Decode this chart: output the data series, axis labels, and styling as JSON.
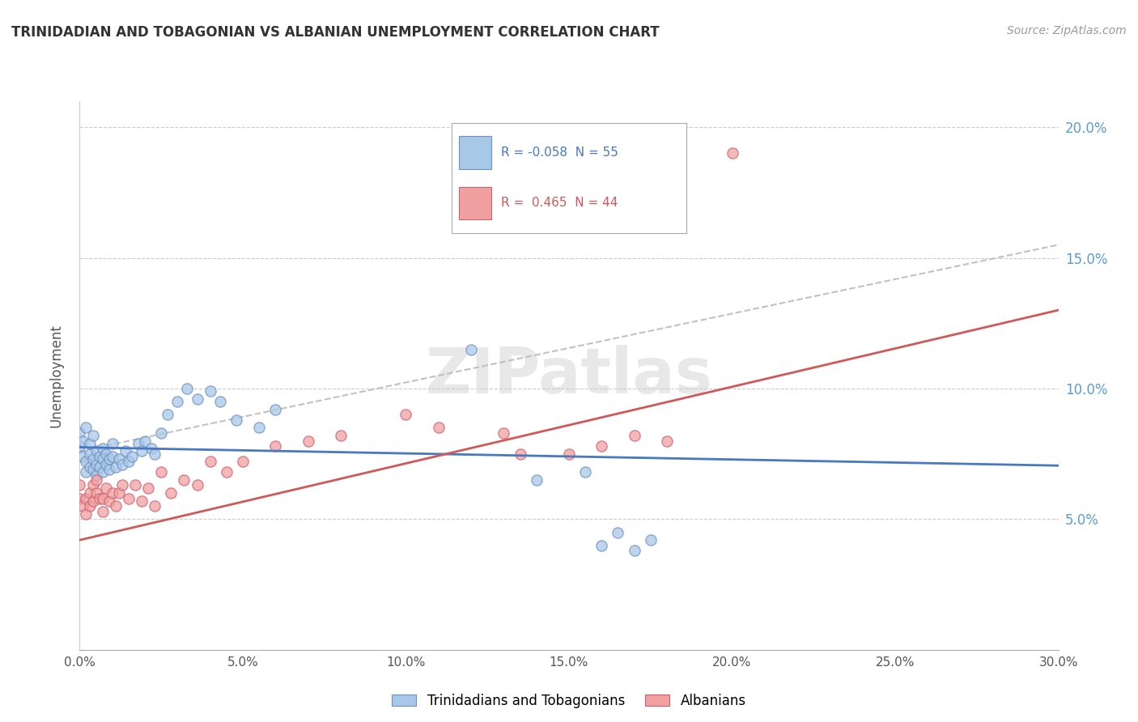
{
  "title": "TRINIDADIAN AND TOBAGONIAN VS ALBANIAN UNEMPLOYMENT CORRELATION CHART",
  "source": "Source: ZipAtlas.com",
  "ylabel": "Unemployment",
  "x_min": 0.0,
  "x_max": 0.3,
  "y_min": 0.0,
  "y_max": 0.21,
  "x_ticks": [
    0.0,
    0.05,
    0.1,
    0.15,
    0.2,
    0.25,
    0.3
  ],
  "x_tick_labels": [
    "0.0%",
    "5.0%",
    "10.0%",
    "15.0%",
    "20.0%",
    "25.0%",
    "30.0%"
  ],
  "y_ticks": [
    0.05,
    0.1,
    0.15,
    0.2
  ],
  "y_tick_labels": [
    "5.0%",
    "10.0%",
    "15.0%",
    "20.0%"
  ],
  "color_blue": "#A8C8E8",
  "color_pink": "#F0A0A0",
  "color_blue_dark": "#7090C0",
  "color_pink_dark": "#D06070",
  "color_blue_line": "#4878C0",
  "color_pink_line": "#D05858",
  "legend_blue_R": "-0.058",
  "legend_blue_N": "55",
  "legend_pink_R": "0.465",
  "legend_pink_N": "44",
  "watermark": "ZIPatlas",
  "blue_points_x": [
    0.0,
    0.0,
    0.001,
    0.001,
    0.002,
    0.002,
    0.002,
    0.003,
    0.003,
    0.003,
    0.004,
    0.004,
    0.004,
    0.005,
    0.005,
    0.005,
    0.006,
    0.006,
    0.007,
    0.007,
    0.007,
    0.008,
    0.008,
    0.009,
    0.009,
    0.01,
    0.01,
    0.011,
    0.012,
    0.013,
    0.014,
    0.015,
    0.016,
    0.018,
    0.019,
    0.02,
    0.022,
    0.023,
    0.025,
    0.027,
    0.03,
    0.033,
    0.036,
    0.04,
    0.043,
    0.048,
    0.055,
    0.06,
    0.14,
    0.155,
    0.16,
    0.165,
    0.17,
    0.175,
    0.12
  ],
  "blue_points_y": [
    0.078,
    0.083,
    0.074,
    0.08,
    0.085,
    0.068,
    0.072,
    0.07,
    0.075,
    0.079,
    0.082,
    0.069,
    0.073,
    0.067,
    0.071,
    0.076,
    0.07,
    0.074,
    0.068,
    0.073,
    0.077,
    0.071,
    0.075,
    0.069,
    0.073,
    0.074,
    0.079,
    0.07,
    0.073,
    0.071,
    0.076,
    0.072,
    0.074,
    0.079,
    0.076,
    0.08,
    0.077,
    0.075,
    0.083,
    0.09,
    0.095,
    0.1,
    0.096,
    0.099,
    0.095,
    0.088,
    0.085,
    0.092,
    0.065,
    0.068,
    0.04,
    0.045,
    0.038,
    0.042,
    0.115
  ],
  "pink_points_x": [
    0.0,
    0.0,
    0.001,
    0.002,
    0.002,
    0.003,
    0.003,
    0.004,
    0.004,
    0.005,
    0.005,
    0.006,
    0.007,
    0.007,
    0.008,
    0.009,
    0.01,
    0.011,
    0.012,
    0.013,
    0.015,
    0.017,
    0.019,
    0.021,
    0.023,
    0.025,
    0.028,
    0.032,
    0.036,
    0.04,
    0.045,
    0.05,
    0.06,
    0.07,
    0.08,
    0.1,
    0.11,
    0.13,
    0.15,
    0.16,
    0.17,
    0.18,
    0.2,
    0.135
  ],
  "pink_points_y": [
    0.063,
    0.058,
    0.055,
    0.058,
    0.052,
    0.06,
    0.055,
    0.063,
    0.057,
    0.065,
    0.06,
    0.058,
    0.053,
    0.058,
    0.062,
    0.057,
    0.06,
    0.055,
    0.06,
    0.063,
    0.058,
    0.063,
    0.057,
    0.062,
    0.055,
    0.068,
    0.06,
    0.065,
    0.063,
    0.072,
    0.068,
    0.072,
    0.078,
    0.08,
    0.082,
    0.09,
    0.085,
    0.083,
    0.075,
    0.078,
    0.082,
    0.08,
    0.19,
    0.075
  ],
  "blue_line_x": [
    0.0,
    0.3
  ],
  "blue_line_y": [
    0.0775,
    0.0705
  ],
  "pink_line_x": [
    0.0,
    0.3
  ],
  "pink_line_y": [
    0.042,
    0.13
  ],
  "dash_line_x": [
    0.0,
    0.3
  ],
  "dash_line_y": [
    0.076,
    0.155
  ]
}
